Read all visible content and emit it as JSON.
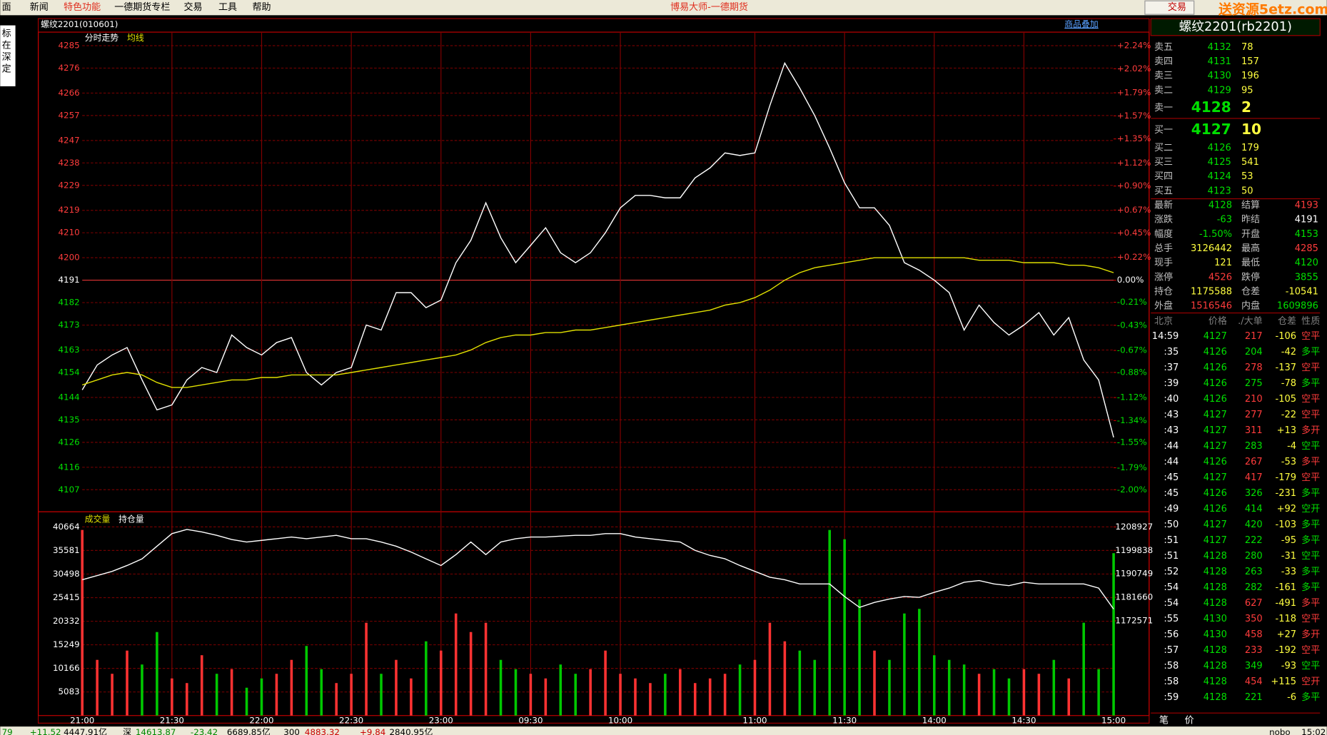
{
  "menu": {
    "items": [
      "面",
      "新闻",
      "特色功能",
      "一德期货专栏",
      "交易",
      "工具",
      "帮助"
    ],
    "app_title": "博易大师-一德期货",
    "trade_button": "交易",
    "watermark": "送资源5etz.com"
  },
  "sidebar_text": [
    "标",
    "在",
    "深",
    "定"
  ],
  "chart_header": {
    "contract": "螺纹2201(010601)",
    "overlay_button": "商品叠加"
  },
  "chart_data": [
    {
      "type": "line",
      "series": [
        {
          "name": "分时走势",
          "color": "#ffffff",
          "values": [
            4147,
            4157,
            4161,
            4164,
            4151,
            4139,
            4141,
            4151,
            4156,
            4154,
            4169,
            4164,
            4161,
            4166,
            4168,
            4154,
            4149,
            4154,
            4156,
            4173,
            4171,
            4186,
            4186,
            4180,
            4183,
            4198,
            4207,
            4222,
            4208,
            4198,
            4205,
            4212,
            4202,
            4198,
            4202,
            4210,
            4220,
            4225,
            4225,
            4224,
            4224,
            4232,
            4236,
            4242,
            4241,
            4242,
            4261,
            4278,
            4268,
            4257,
            4244,
            4230,
            4220,
            4220,
            4213,
            4198,
            4195,
            4191,
            4186,
            4171,
            4181,
            4174,
            4169,
            4173,
            4178,
            4169,
            4176,
            4159,
            4151,
            4128
          ]
        },
        {
          "name": "均线",
          "color": "#e0e000",
          "values": [
            4149,
            4151,
            4153,
            4154,
            4153,
            4150,
            4148,
            4148,
            4149,
            4150,
            4151,
            4151,
            4152,
            4152,
            4153,
            4153,
            4153,
            4153,
            4154,
            4155,
            4156,
            4157,
            4158,
            4159,
            4160,
            4161,
            4163,
            4166,
            4168,
            4169,
            4169,
            4170,
            4170,
            4171,
            4171,
            4172,
            4173,
            4174,
            4175,
            4176,
            4177,
            4178,
            4179,
            4181,
            4182,
            4184,
            4187,
            4191,
            4194,
            4196,
            4197,
            4198,
            4199,
            4200,
            4200,
            4200,
            4200,
            4200,
            4200,
            4200,
            4199,
            4199,
            4199,
            4198,
            4198,
            4198,
            4197,
            4197,
            4196,
            4194
          ]
        }
      ],
      "ylim": [
        4107,
        4285
      ],
      "yticks": [
        4285,
        4276,
        4266,
        4257,
        4247,
        4238,
        4229,
        4219,
        4210,
        4200,
        4191,
        4182,
        4173,
        4163,
        4154,
        4144,
        4135,
        4126,
        4116,
        4107
      ],
      "y2lim": [
        -2.0,
        2.24
      ],
      "y2ticks": [
        {
          "value": 2.24,
          "label": "+2.24%"
        },
        {
          "value": 2.02,
          "label": "+2.02%"
        },
        {
          "value": 1.79,
          "label": "+1.79%"
        },
        {
          "value": 1.57,
          "label": "+1.57%"
        },
        {
          "value": 1.35,
          "label": "+1.35%"
        },
        {
          "value": 1.12,
          "label": "+1.12%"
        },
        {
          "value": 0.9,
          "label": "+0.90%"
        },
        {
          "value": 0.67,
          "label": "+0.67%"
        },
        {
          "value": 0.45,
          "label": "+0.45%"
        },
        {
          "value": 0.22,
          "label": "+0.22%"
        },
        {
          "value": 0,
          "label": "0.00%"
        },
        {
          "value": -0.21,
          "label": "-0.21%"
        },
        {
          "value": -0.43,
          "label": "-0.43%"
        },
        {
          "value": -0.67,
          "label": "-0.67%"
        },
        {
          "value": -0.88,
          "label": "-0.88%"
        },
        {
          "value": -1.12,
          "label": "-1.12%"
        },
        {
          "value": -1.34,
          "label": "-1.34%"
        },
        {
          "value": -1.55,
          "label": "-1.55%"
        },
        {
          "value": -1.79,
          "label": "-1.79%"
        },
        {
          "value": -2.0,
          "label": "-2.00%"
        }
      ],
      "grid": true
    },
    {
      "type": "combo",
      "categories": [
        "21:00",
        null,
        null,
        null,
        null,
        null,
        "21:30",
        null,
        null,
        null,
        null,
        null,
        "22:00",
        null,
        null,
        null,
        null,
        null,
        "22:30",
        null,
        null,
        null,
        null,
        null,
        "23:00",
        null,
        null,
        null,
        null,
        null,
        "09:30",
        null,
        null,
        null,
        null,
        null,
        "10:00",
        null,
        null,
        null,
        null,
        null,
        null,
        null,
        null,
        "11:00",
        null,
        null,
        null,
        null,
        null,
        "11:30",
        null,
        null,
        null,
        null,
        null,
        "14:00",
        null,
        null,
        null,
        null,
        null,
        "14:30",
        null,
        null,
        null,
        null,
        null,
        "15:00"
      ],
      "series": [
        {
          "name": "成交量",
          "type": "bar",
          "up_color": "#ff3232",
          "down_color": "#00c800",
          "values": [
            40000,
            12000,
            9000,
            14000,
            11000,
            18000,
            8000,
            7000,
            13000,
            9000,
            10000,
            6000,
            8000,
            9000,
            12000,
            15000,
            10000,
            7000,
            9000,
            20000,
            9000,
            12000,
            8000,
            16000,
            14000,
            22000,
            18000,
            20000,
            12000,
            10000,
            9000,
            8000,
            11000,
            9000,
            10000,
            14000,
            9000,
            8000,
            7000,
            9000,
            10000,
            7000,
            8000,
            9000,
            11000,
            12000,
            20000,
            16000,
            14000,
            12000,
            40000,
            38000,
            25000,
            14000,
            12000,
            22000,
            23000,
            13000,
            12000,
            11000,
            9000,
            10000,
            8000,
            10000,
            9000,
            12000,
            8000,
            20000,
            10000,
            35000
          ]
        },
        {
          "name": "持仓量",
          "type": "line",
          "axis": "y2",
          "color": "#ffffff",
          "values": [
            1188476,
            1190099,
            1191722,
            1193995,
            1196591,
            1201460,
            1206329,
            1207952,
            1206979,
            1205680,
            1204057,
            1203083,
            1203733,
            1204382,
            1205031,
            1204382,
            1205031,
            1205680,
            1204382,
            1204382,
            1203083,
            1201460,
            1199188,
            1196591,
            1193995,
            1198214,
            1203083,
            1198214,
            1203083,
            1204382,
            1205031,
            1205031,
            1205356,
            1205680,
            1205680,
            1206329,
            1206329,
            1205031,
            1204382,
            1203733,
            1203083,
            1199838,
            1197890,
            1196591,
            1193995,
            1191722,
            1189450,
            1188476,
            1186853,
            1186853,
            1186853,
            1181984,
            1177765,
            1179712,
            1181011,
            1181984,
            1181660,
            1183607,
            1185230,
            1187503,
            1188152,
            1186853,
            1186204,
            1187503,
            1186853,
            1186853,
            1186853,
            1186853,
            1185230,
            1177115
          ]
        }
      ],
      "ylim": [
        0,
        43205
      ],
      "yticks": [
        40664,
        35581,
        30498,
        25415,
        20332,
        15249,
        10166,
        5083
      ],
      "y2lim": [
        1135886,
        1213512
      ],
      "y2ticks": [
        1208927,
        1199838,
        1190749,
        1181660,
        1172571
      ],
      "grid": true
    }
  ],
  "quote": {
    "title": "螺纹2201(rb2201)",
    "asks": [
      {
        "label": "卖五",
        "price": 4132,
        "volume": 78
      },
      {
        "label": "卖四",
        "price": 4131,
        "volume": 157
      },
      {
        "label": "卖三",
        "price": 4130,
        "volume": 196
      },
      {
        "label": "卖二",
        "price": 4129,
        "volume": 95
      },
      {
        "label": "卖一",
        "price": 4128,
        "volume": 2
      }
    ],
    "bids": [
      {
        "label": "买一",
        "price": 4127,
        "volume": 10
      },
      {
        "label": "买二",
        "price": 4126,
        "volume": 179
      },
      {
        "label": "买三",
        "price": 4125,
        "volume": 541
      },
      {
        "label": "买四",
        "price": 4124,
        "volume": 53
      },
      {
        "label": "买五",
        "price": 4123,
        "volume": 50
      }
    ],
    "stats": [
      {
        "label": "最新",
        "value": 4128,
        "label2": "结算",
        "value2": 4193
      },
      {
        "label": "涨跌",
        "value": -63,
        "label2": "昨结",
        "value2": 4191
      },
      {
        "label": "幅度",
        "value": "-1.50%",
        "label2": "开盘",
        "value2": 4153
      },
      {
        "label": "总手",
        "value": 3126442,
        "label2": "最高",
        "value2": 4285
      },
      {
        "label": "现手",
        "value": 121,
        "label2": "最低",
        "value2": 4120
      },
      {
        "label": "涨停",
        "value": 4526,
        "label2": "跌停",
        "value2": 3855
      },
      {
        "label": "持仓",
        "value": 1175588,
        "label2": "仓差",
        "value2": -10541
      },
      {
        "label": "外盘",
        "value": 1516546,
        "label2": "内盘",
        "value2": 1609896
      }
    ]
  },
  "ticks_list": {
    "header": [
      "北京",
      "价格",
      "./大单",
      "仓差",
      "性质"
    ],
    "rows": [
      [
        "14:59",
        4127,
        217,
        -106,
        "空平"
      ],
      [
        ":35",
        4126,
        204,
        -42,
        "多平"
      ],
      [
        ":37",
        4126,
        278,
        -137,
        "空平"
      ],
      [
        ":39",
        4126,
        275,
        -78,
        "多平"
      ],
      [
        ":40",
        4126,
        210,
        -105,
        "空平"
      ],
      [
        ":43",
        4127,
        277,
        -22,
        "空平"
      ],
      [
        ":43",
        4127,
        311,
        "+13",
        "多开"
      ],
      [
        ":44",
        4127,
        283,
        -4,
        "空平"
      ],
      [
        ":44",
        4126,
        267,
        -53,
        "多平"
      ],
      [
        ":45",
        4127,
        417,
        -179,
        "空平"
      ],
      [
        ":45",
        4126,
        326,
        -231,
        "多平"
      ],
      [
        ":49",
        4126,
        414,
        "+92",
        "空开"
      ],
      [
        ":50",
        4127,
        420,
        -103,
        "多平"
      ],
      [
        ":51",
        4127,
        222,
        -95,
        "多平"
      ],
      [
        ":51",
        4128,
        280,
        -31,
        "空平"
      ],
      [
        ":52",
        4128,
        263,
        -33,
        "多平"
      ],
      [
        ":54",
        4128,
        282,
        -161,
        "多平"
      ],
      [
        ":54",
        4128,
        627,
        -491,
        "多平"
      ],
      [
        ":55",
        4130,
        350,
        -118,
        "空平"
      ],
      [
        ":56",
        4130,
        458,
        "+27",
        "多开"
      ],
      [
        ":57",
        4128,
        233,
        -192,
        "空平"
      ],
      [
        ":58",
        4128,
        349,
        -93,
        "空平"
      ],
      [
        ":58",
        4128,
        454,
        "+115",
        "空开"
      ],
      [
        ":59",
        4128,
        221,
        -6,
        "多平"
      ]
    ],
    "tabs": [
      "笔",
      "价"
    ]
  },
  "status_bar": [
    "79",
    "+11.52",
    "4447.91亿",
    "深",
    "14613.87",
    "-23.42",
    "6689.85亿",
    "300",
    "4883.32",
    "+9.84",
    "2840.95亿",
    "nobo",
    "15:02"
  ]
}
